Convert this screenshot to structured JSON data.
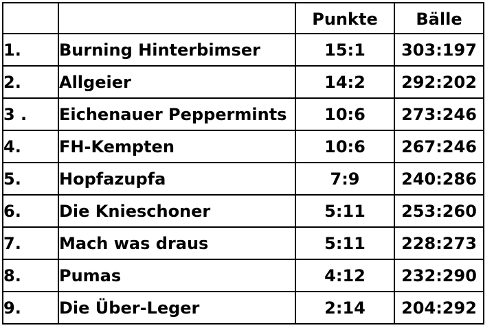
{
  "headers": {
    "rank": "",
    "team": "",
    "points": "Punkte",
    "balls": "Bälle"
  },
  "rows": [
    {
      "rank": "1.",
      "team": "Burning Hinterbimser",
      "points": "15:1",
      "balls": "303:197"
    },
    {
      "rank": "2.",
      "team": "Allgeier",
      "points": "14:2",
      "balls": "292:202"
    },
    {
      "rank": "3 .",
      "team": "Eichenauer Peppermints",
      "points": "10:6",
      "balls": "273:246"
    },
    {
      "rank": "4.",
      "team": "FH-Kempten",
      "points": "10:6",
      "balls": "267:246"
    },
    {
      "rank": "5.",
      "team": "Hopfazupfa",
      "points": "7:9",
      "balls": "240:286"
    },
    {
      "rank": "6.",
      "team": "Die Knieschoner",
      "points": "5:11",
      "balls": "253:260"
    },
    {
      "rank": "7.",
      "team": "Mach was draus",
      "points": "5:11",
      "balls": "228:273"
    },
    {
      "rank": "8.",
      "team": "Pumas",
      "points": "4:12",
      "balls": "232:290"
    },
    {
      "rank": "9.",
      "team": "Die Über-Leger",
      "points": "2:14",
      "balls": "204:292"
    }
  ]
}
